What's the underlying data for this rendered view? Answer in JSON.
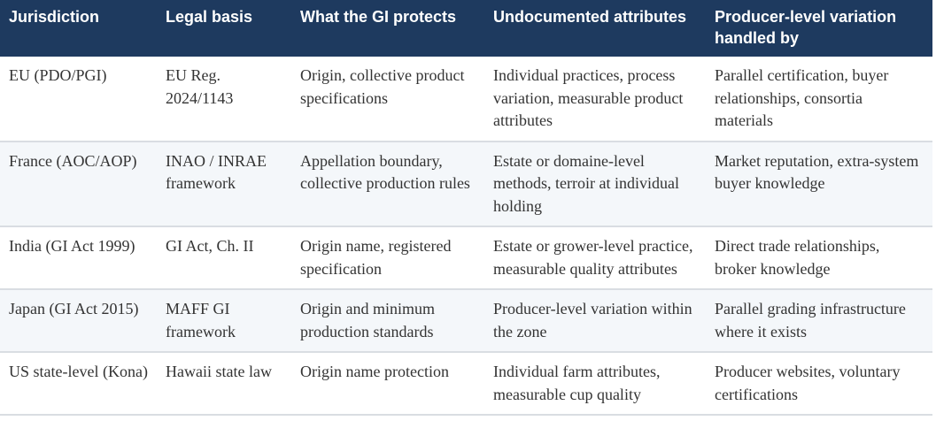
{
  "table": {
    "headers": [
      "Jurisdiction",
      "Legal basis",
      "What the GI protects",
      "Undocumented attributes",
      "Producer-level variation handled by"
    ],
    "rows": [
      [
        "EU (PDO/PGI)",
        "EU Reg. 2024/1143",
        "Origin, collective product specifications",
        "Individual practices, process variation, measurable product attributes",
        "Parallel certification, buyer relationships, consortia materials"
      ],
      [
        "France (AOC/AOP)",
        "INAO / INRAE framework",
        "Appellation boundary, collective production rules",
        "Estate or domaine-level methods, terroir at individual holding",
        "Market reputation, extra-system buyer knowledge"
      ],
      [
        "India (GI Act 1999)",
        "GI Act, Ch. II",
        "Origin name, registered specification",
        "Estate or grower-level practice, measurable quality attributes",
        "Direct trade relationships, broker knowledge"
      ],
      [
        "Japan (GI Act 2015)",
        "MAFF GI framework",
        "Origin and minimum production standards",
        "Producer-level variation within the zone",
        "Parallel grading infrastructure where it exists"
      ],
      [
        "US state-level (Kona)",
        "Hawaii state law",
        "Origin name protection",
        "Individual farm attributes, measurable cup quality",
        "Producer websites, voluntary certifications"
      ]
    ]
  },
  "colors": {
    "header_bg": "#1e3a5f",
    "stripe": "#f4f7fa",
    "text": "#333333"
  }
}
